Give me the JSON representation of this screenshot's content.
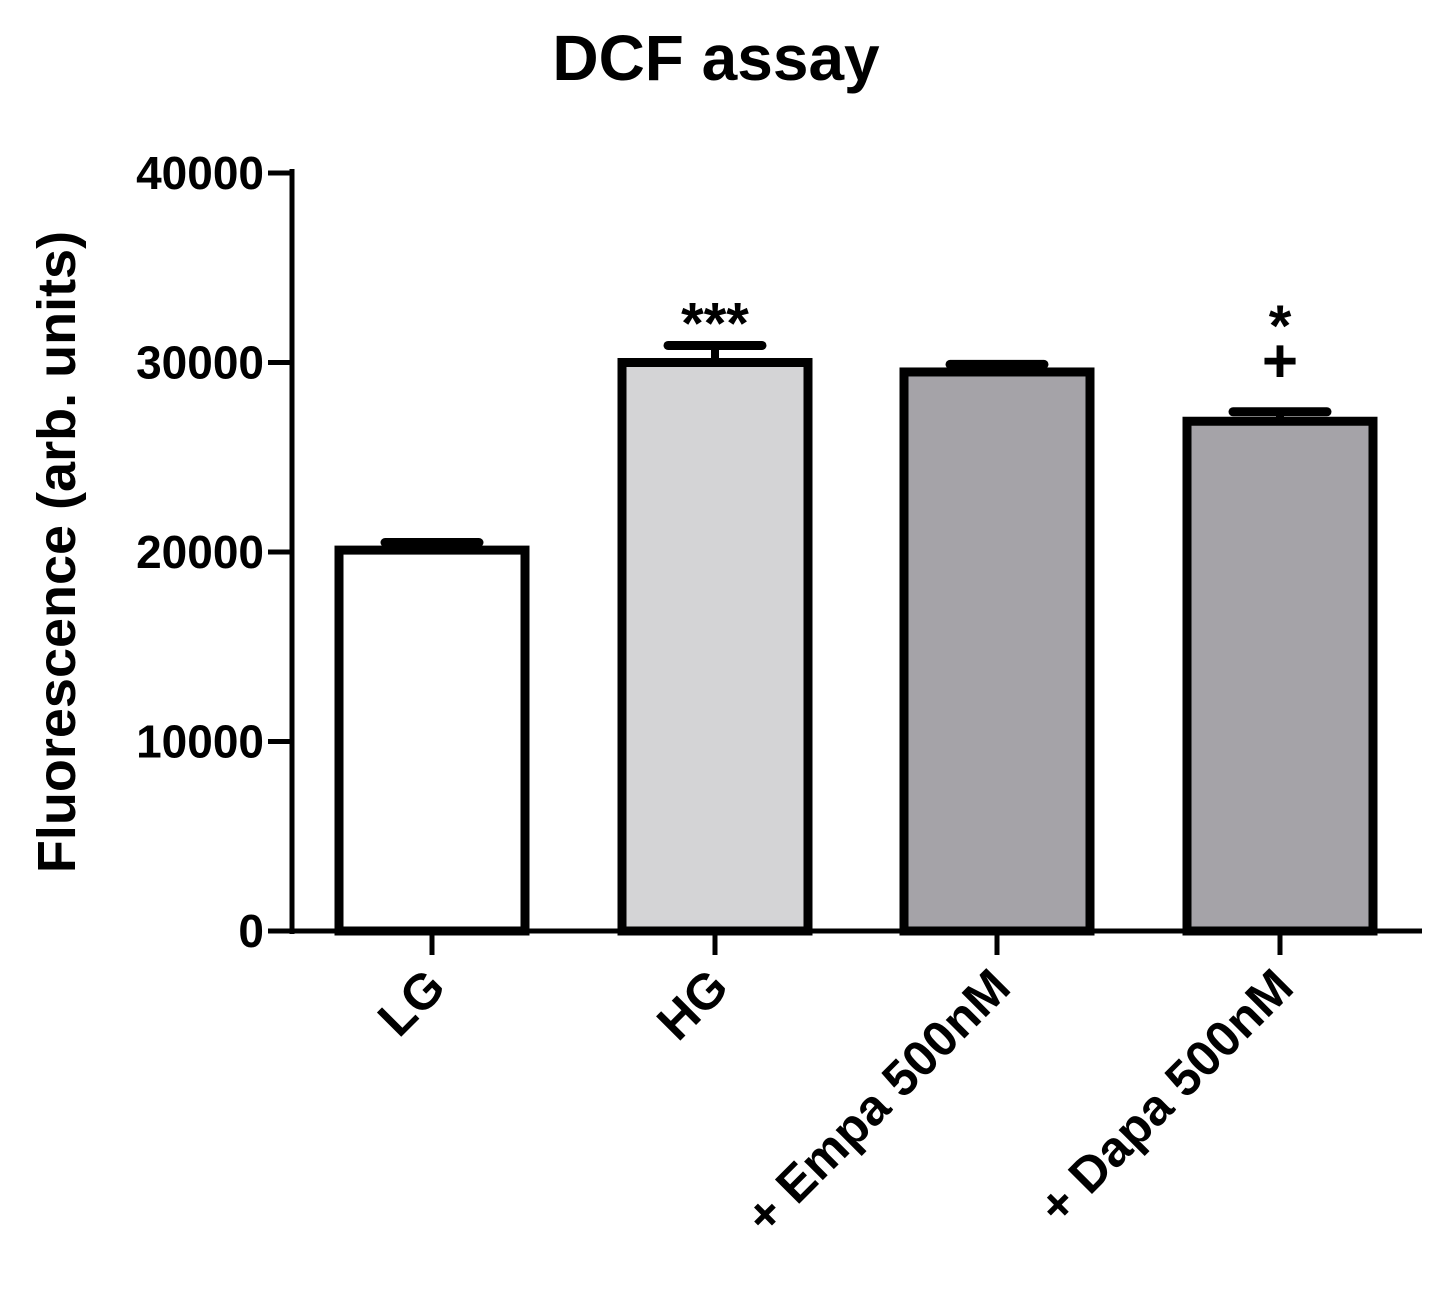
{
  "chart_data": {
    "type": "bar",
    "title": "DCF assay",
    "xlabel": "",
    "ylabel": "Fluorescence (arb. units)",
    "ylim": [
      0,
      40000
    ],
    "yticks": [
      "0",
      "10000",
      "20000",
      "30000",
      "40000"
    ],
    "grid": false,
    "categories": [
      "LG",
      "HG",
      "+ Empa 500nM",
      "+ Dapa 500nM"
    ],
    "values": [
      20100,
      30000,
      29500,
      26900
    ],
    "errors": [
      400,
      900,
      400,
      500
    ],
    "colors": [
      "#ffffff",
      "#d4d4d6",
      "#a5a3a8",
      "#a5a3a8"
    ],
    "annotations": [
      {
        "category": "HG",
        "lines": [
          "***"
        ]
      },
      {
        "category": "+ Dapa 500nM",
        "lines": [
          "*",
          "+"
        ]
      }
    ]
  }
}
